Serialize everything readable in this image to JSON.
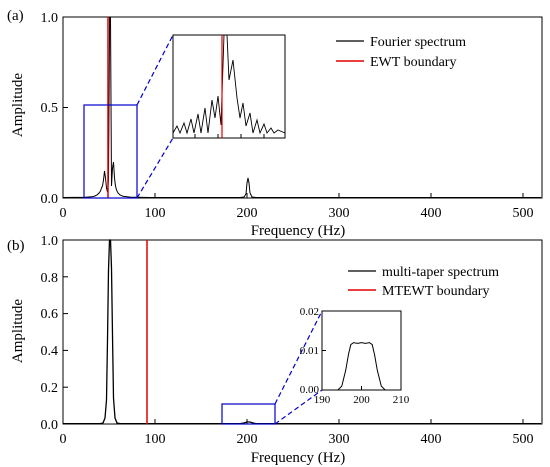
{
  "chart_data": [
    {
      "type": "line",
      "panel_label": "(a)",
      "xlabel": "Frequency (Hz)",
      "ylabel": "Amplitude",
      "xlim": [
        0,
        520
      ],
      "ylim": [
        0,
        1.0
      ],
      "xticks": [
        "0",
        "100",
        "200",
        "300",
        "400",
        "500"
      ],
      "yticks": [
        "0.0",
        "0.5",
        "1.0"
      ],
      "legend_position": "top-right",
      "series": [
        {
          "name": "Fourier spectrum",
          "color": "#000000",
          "peaks": [
            {
              "x": 50,
              "y": 1.0
            },
            {
              "x": 46,
              "y": 0.15
            },
            {
              "x": 54,
              "y": 0.19
            },
            {
              "x": 200,
              "y": 0.1
            }
          ]
        },
        {
          "name": "EWT boundary",
          "color": "#e00000",
          "x": [
            48.5
          ]
        }
      ],
      "zoom_box": {
        "x_range": [
          20,
          78
        ],
        "y_range": [
          0,
          0.51
        ],
        "color": "#0000cc"
      },
      "inset": {
        "shows": "zoom of Fourier spectrum near 50 Hz with EWT boundary"
      }
    },
    {
      "type": "line",
      "panel_label": "(b)",
      "xlabel": "Frequency (Hz)",
      "ylabel": "Amplitude",
      "xlim": [
        0,
        520
      ],
      "ylim": [
        0,
        1.0
      ],
      "xticks": [
        "0",
        "100",
        "200",
        "300",
        "400",
        "500"
      ],
      "yticks": [
        "0.0",
        "0.2",
        "0.4",
        "0.6",
        "0.8",
        "1.0"
      ],
      "legend_position": "top-right",
      "series": [
        {
          "name": "multi-taper spectrum",
          "color": "#000000",
          "peaks": [
            {
              "x": 50,
              "y": 1.0
            },
            {
              "x": 200,
              "y": 0.012
            }
          ]
        },
        {
          "name": "MTEWT boundary",
          "color": "#e00000",
          "x": [
            90
          ]
        }
      ],
      "zoom_box": {
        "x_range": [
          170,
          228
        ],
        "y_range": [
          0,
          0.1
        ],
        "color": "#0000cc"
      },
      "inset": {
        "xlim": [
          190,
          210
        ],
        "ylim": [
          0,
          0.02
        ],
        "xticks": [
          "190",
          "200",
          "210"
        ],
        "yticks": [
          "0.00",
          "0.01",
          "0.02"
        ],
        "curve": [
          [
            190,
            0.0
          ],
          [
            194,
            0.0
          ],
          [
            195,
            0.001
          ],
          [
            196,
            0.005
          ],
          [
            196.7,
            0.009
          ],
          [
            197.3,
            0.0115
          ],
          [
            198,
            0.012
          ],
          [
            199,
            0.0118
          ],
          [
            200,
            0.012
          ],
          [
            201,
            0.0118
          ],
          [
            202,
            0.012
          ],
          [
            202.7,
            0.0115
          ],
          [
            203.3,
            0.009
          ],
          [
            204,
            0.005
          ],
          [
            205,
            0.001
          ],
          [
            206,
            0.0
          ],
          [
            210,
            0.0
          ]
        ]
      }
    }
  ]
}
